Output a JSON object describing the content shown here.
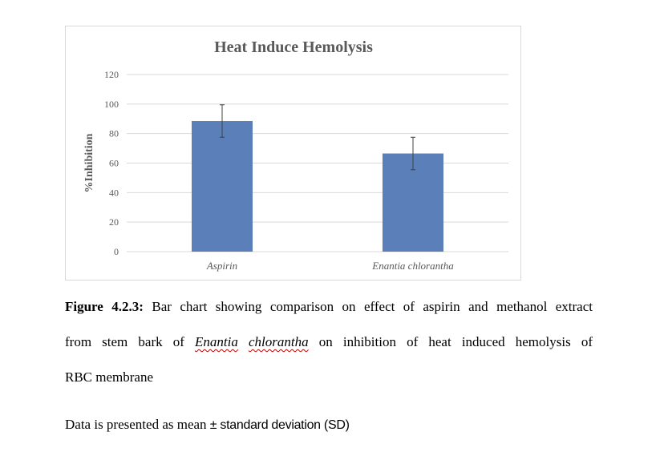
{
  "chart_data": {
    "type": "bar",
    "title": "Heat Induce Hemolysis",
    "ylabel": "%Inhibition",
    "xlabel": "",
    "categories": [
      "Aspirin",
      "Enantia chlorantha"
    ],
    "values": [
      88.5,
      66.5
    ],
    "error": [
      11,
      11
    ],
    "ylim": [
      0,
      120
    ],
    "yticks": [
      0,
      20,
      40,
      60,
      80,
      100,
      120
    ],
    "grid": true,
    "legend": "none",
    "bar_color": "#5b7fb8",
    "grid_color": "#d9d9d9",
    "axis_text_color": "#595959",
    "title_color": "#595959",
    "error_color": "#404040"
  },
  "caption": {
    "label": "Figure 4.2.3:",
    "line1": " Bar chart showing comparison on effect of aspirin and methanol extract",
    "line2_pre": "from stem bark of ",
    "species_genus": "Enantia",
    "species_epithet": "chlorantha",
    "line2_post": " on inhibition of heat induced hemolysis of",
    "line3": "RBC membrane"
  },
  "note": {
    "text_pre": "Data is presented as mean ",
    "text_sans": "± standard deviation (SD)"
  }
}
